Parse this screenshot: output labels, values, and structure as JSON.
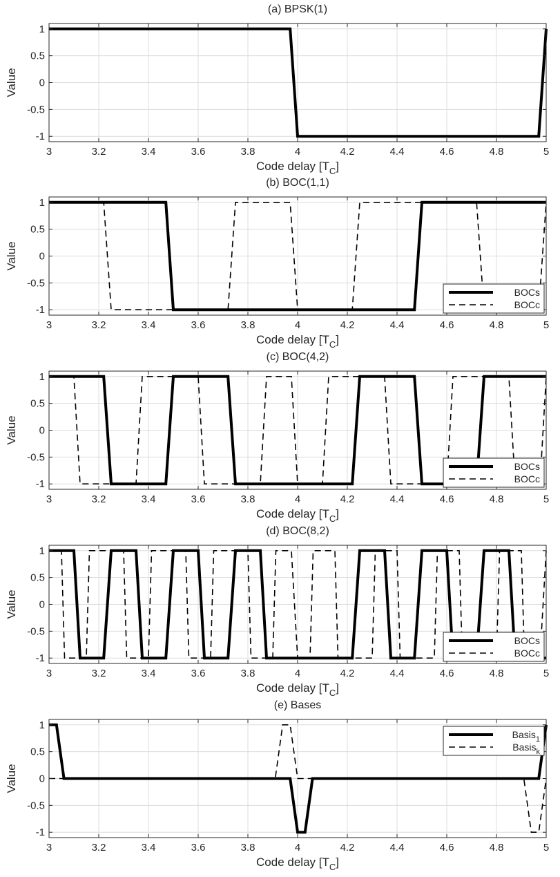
{
  "chart_data": [
    {
      "type": "line",
      "title": "(a) BPSK(1)",
      "xlabel": "Code delay [T",
      "xlabel_sub": "C",
      "ylabel": "Value",
      "xlim": [
        3,
        5
      ],
      "ylim": [
        -1.1,
        1.1
      ],
      "xticks": [
        "3",
        "3.2",
        "3.4",
        "3.6",
        "3.8",
        "4",
        "4.2",
        "4.4",
        "4.6",
        "4.8",
        "5"
      ],
      "yticks": [
        "1",
        "0.5",
        "0",
        "-0.5",
        "-1"
      ],
      "grid": true,
      "legend": null,
      "series": [
        {
          "style": "solid",
          "x": [
            3,
            3.97,
            4.0,
            4.97,
            5.0
          ],
          "y": [
            1,
            1,
            -1,
            -1,
            1
          ]
        }
      ]
    },
    {
      "type": "line",
      "title": "(b) BOC(1,1)",
      "xlabel": "Code delay [T",
      "xlabel_sub": "C",
      "ylabel": "Value",
      "xlim": [
        3,
        5
      ],
      "ylim": [
        -1.1,
        1.1
      ],
      "xticks": [
        "3",
        "3.2",
        "3.4",
        "3.6",
        "3.8",
        "4",
        "4.2",
        "4.4",
        "4.6",
        "4.8",
        "5"
      ],
      "yticks": [
        "1",
        "0.5",
        "0",
        "-0.5",
        "-1"
      ],
      "grid": true,
      "legend": {
        "position": "bottom-right",
        "entries": [
          {
            "text": "BOCs",
            "style": "solid"
          },
          {
            "text": "BOCc",
            "style": "dashed"
          }
        ]
      },
      "series": [
        {
          "style": "solid",
          "x": [
            3,
            3.47,
            3.5,
            4.47,
            4.5,
            5.0
          ],
          "y": [
            1,
            1,
            -1,
            -1,
            1,
            1
          ]
        },
        {
          "style": "dashed",
          "x": [
            3,
            3.22,
            3.25,
            3.72,
            3.75,
            3.97,
            4.0,
            4.22,
            4.25,
            4.72,
            4.75,
            4.97,
            5.0
          ],
          "y": [
            1,
            1,
            -1,
            -1,
            1,
            1,
            -1,
            -1,
            1,
            1,
            -1,
            -1,
            1
          ]
        }
      ]
    },
    {
      "type": "line",
      "title": "(c) BOC(4,2)",
      "xlabel": "Code delay [T",
      "xlabel_sub": "C",
      "ylabel": "Value",
      "xlim": [
        3,
        5
      ],
      "ylim": [
        -1.1,
        1.1
      ],
      "xticks": [
        "3",
        "3.2",
        "3.4",
        "3.6",
        "3.8",
        "4",
        "4.2",
        "4.4",
        "4.6",
        "4.8",
        "5"
      ],
      "yticks": [
        "1",
        "0.5",
        "0",
        "-0.5",
        "-1"
      ],
      "grid": true,
      "legend": {
        "position": "bottom-right",
        "entries": [
          {
            "text": "BOCs",
            "style": "solid"
          },
          {
            "text": "BOCc",
            "style": "dashed"
          }
        ]
      },
      "series": [
        {
          "style": "solid",
          "x": [
            3,
            3.22,
            3.25,
            3.47,
            3.5,
            3.72,
            3.75,
            4.22,
            4.25,
            4.47,
            4.5,
            4.72,
            4.75,
            5.0
          ],
          "y": [
            1,
            1,
            -1,
            -1,
            1,
            1,
            -1,
            -1,
            1,
            1,
            -1,
            -1,
            1,
            1
          ]
        },
        {
          "style": "dashed",
          "x": [
            3,
            3.1,
            3.125,
            3.35,
            3.375,
            3.6,
            3.625,
            3.85,
            3.875,
            3.975,
            4.0,
            4.1,
            4.125,
            4.35,
            4.375,
            4.6,
            4.625,
            4.85,
            4.875,
            4.975,
            5.0
          ],
          "y": [
            1,
            1,
            -1,
            -1,
            1,
            1,
            -1,
            -1,
            1,
            1,
            -1,
            -1,
            1,
            1,
            -1,
            -1,
            1,
            1,
            -1,
            -1,
            1
          ]
        }
      ]
    },
    {
      "type": "line",
      "title": "(d) BOC(8,2)",
      "xlabel": "Code delay [T",
      "xlabel_sub": "C",
      "ylabel": "Value",
      "xlim": [
        3,
        5
      ],
      "ylim": [
        -1.1,
        1.1
      ],
      "xticks": [
        "3",
        "3.2",
        "3.4",
        "3.6",
        "3.8",
        "4",
        "4.2",
        "4.4",
        "4.6",
        "4.8",
        "5"
      ],
      "yticks": [
        "1",
        "0.5",
        "0",
        "-0.5",
        "-1"
      ],
      "grid": true,
      "legend": {
        "position": "bottom-right",
        "entries": [
          {
            "text": "BOCs",
            "style": "solid"
          },
          {
            "text": "BOCc",
            "style": "dashed"
          }
        ]
      },
      "series": [
        {
          "style": "solid",
          "x": [
            3,
            3.1,
            3.125,
            3.22,
            3.25,
            3.35,
            3.375,
            3.47,
            3.5,
            3.6,
            3.625,
            3.72,
            3.75,
            3.85,
            3.875,
            3.97,
            4.0,
            4.22,
            4.25,
            4.35,
            4.375,
            4.47,
            4.5,
            4.6,
            4.625,
            4.72,
            4.75,
            4.85,
            4.875,
            5.0
          ],
          "y": [
            1,
            1,
            -1,
            -1,
            1,
            1,
            -1,
            -1,
            1,
            1,
            -1,
            -1,
            1,
            1,
            -1,
            -1,
            -1,
            -1,
            1,
            1,
            -1,
            -1,
            1,
            1,
            -1,
            -1,
            1,
            1,
            -1,
            -1
          ]
        },
        {
          "style": "dashed",
          "x": [
            3,
            3.05,
            3.0625,
            3.15,
            3.1625,
            3.3,
            3.3125,
            3.4,
            3.4125,
            3.55,
            3.5625,
            3.65,
            3.6625,
            3.8,
            3.8125,
            3.9,
            3.9125,
            3.975,
            4.0,
            4.05,
            4.0625,
            4.15,
            4.1625,
            4.3,
            4.3125,
            4.4,
            4.4125,
            4.55,
            4.5625,
            4.65,
            4.6625,
            4.8,
            4.8125,
            4.9,
            4.9125,
            4.975,
            5.0
          ],
          "y": [
            1,
            1,
            -1,
            -1,
            1,
            1,
            -1,
            -1,
            1,
            1,
            -1,
            -1,
            1,
            1,
            -1,
            -1,
            1,
            1,
            -1,
            -1,
            1,
            1,
            -1,
            -1,
            1,
            1,
            -1,
            -1,
            1,
            1,
            -1,
            -1,
            1,
            1,
            -1,
            -1,
            1
          ]
        }
      ]
    },
    {
      "type": "line",
      "title": "(e) Bases",
      "xlabel": "Code delay [T",
      "xlabel_sub": "C",
      "ylabel": "Value",
      "xlim": [
        3,
        5
      ],
      "ylim": [
        -1.1,
        1.1
      ],
      "xticks": [
        "3",
        "3.2",
        "3.4",
        "3.6",
        "3.8",
        "4",
        "4.2",
        "4.4",
        "4.6",
        "4.8",
        "5"
      ],
      "yticks": [
        "1",
        "0.5",
        "0",
        "-0.5",
        "-1"
      ],
      "grid": true,
      "legend": {
        "position": "top-right",
        "entries": [
          {
            "text": "Basis",
            "sub": "1",
            "style": "solid"
          },
          {
            "text": "Basis",
            "sub": "k",
            "style": "dashed"
          }
        ]
      },
      "series": [
        {
          "style": "solid",
          "x": [
            3,
            3.03,
            3.06,
            3.97,
            4.0,
            4.03,
            4.06,
            4.97,
            5.0
          ],
          "y": [
            1,
            1,
            0,
            0,
            -1,
            -1,
            0,
            0,
            1
          ]
        },
        {
          "style": "dashed",
          "x": [
            3,
            3.91,
            3.94,
            3.97,
            4.0,
            4.91,
            4.94,
            4.97,
            5.0
          ],
          "y": [
            0,
            0,
            1,
            1,
            0,
            0,
            -1,
            -1,
            0
          ]
        }
      ]
    }
  ]
}
